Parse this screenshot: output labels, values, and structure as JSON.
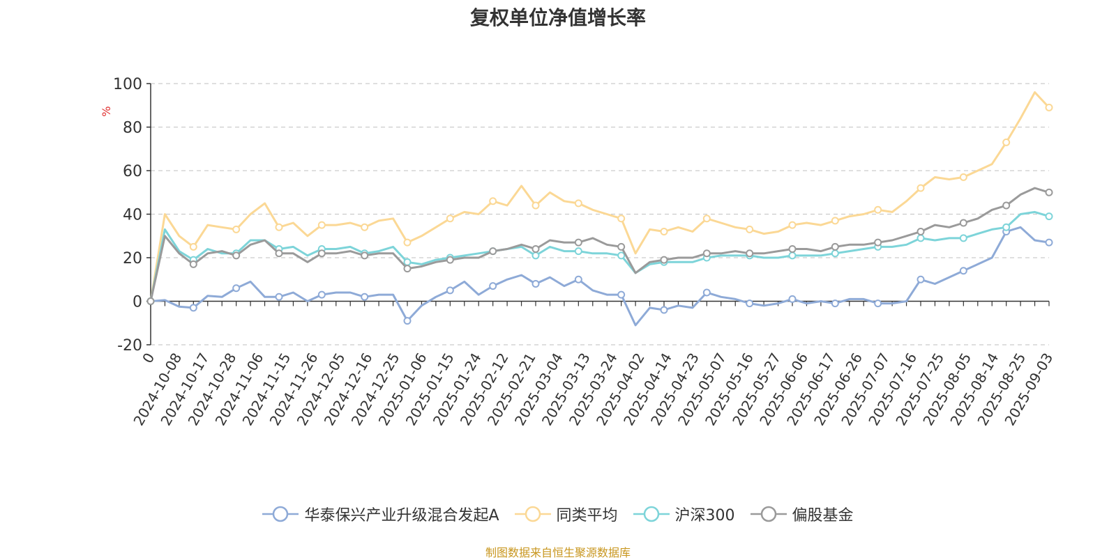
{
  "title": "复权单位净值增长率",
  "source": "制图数据来自恒生聚源数据库",
  "colors": {
    "fund": "#8eaad7",
    "peer": "#fbd895",
    "hs300": "#7dd4d9",
    "stock_fund": "#9a9a9a"
  },
  "chart_data": {
    "type": "line",
    "title": "复权单位净值增长率",
    "ylabel": "%",
    "xlabel": "",
    "ylim": [
      -20,
      100
    ],
    "yticks": [
      -20,
      0,
      20,
      40,
      60,
      80,
      100
    ],
    "grid": true,
    "legend_position": "bottom",
    "x_tick_labels": [
      "0",
      "2024-10-08",
      "2024-10-17",
      "2024-10-28",
      "2024-11-06",
      "2024-11-15",
      "2024-11-26",
      "2024-12-05",
      "2024-12-16",
      "2024-12-25",
      "2025-01-06",
      "2025-01-15",
      "2025-01-24",
      "2025-02-12",
      "2025-02-21",
      "2025-03-04",
      "2025-03-13",
      "2025-03-24",
      "2025-04-02",
      "2025-04-14",
      "2025-04-23",
      "2025-05-07",
      "2025-05-16",
      "2025-05-27",
      "2025-06-06",
      "2025-06-17",
      "2025-06-26",
      "2025-07-07",
      "2025-07-16",
      "2025-07-25",
      "2025-08-05",
      "2025-08-14",
      "2025-08-25",
      "2025-09-03"
    ],
    "series": [
      {
        "name": "华泰保兴产业升级混合发起A",
        "values": [
          0,
          0.5,
          -2.5,
          -3,
          2.5,
          2,
          6,
          9,
          2,
          2,
          4,
          0,
          3,
          4,
          4,
          2,
          3,
          3,
          -9,
          -2,
          2,
          5,
          9,
          3,
          7,
          10,
          12,
          8,
          11,
          7,
          10,
          5,
          3,
          3,
          -11,
          -3,
          -4,
          -2,
          -3,
          4,
          2,
          1,
          -1,
          -2,
          -1,
          1,
          -1,
          0,
          -1,
          1,
          1,
          -1,
          -1,
          0,
          10,
          8,
          11,
          14,
          17,
          20,
          32,
          34,
          28,
          27
        ]
      },
      {
        "name": "同类平均",
        "values": [
          0,
          40,
          30,
          25,
          35,
          34,
          33,
          40,
          45,
          34,
          36,
          30,
          35,
          35,
          36,
          34,
          37,
          38,
          27,
          30,
          34,
          38,
          41,
          40,
          46,
          44,
          53,
          44,
          50,
          46,
          45,
          42,
          40,
          38,
          22,
          33,
          32,
          34,
          32,
          38,
          36,
          34,
          33,
          31,
          32,
          35,
          36,
          35,
          37,
          39,
          40,
          42,
          41,
          46,
          52,
          57,
          56,
          57,
          60,
          63,
          73,
          84,
          96,
          89
        ]
      },
      {
        "name": "沪深300",
        "values": [
          0,
          33,
          23,
          19,
          24,
          22,
          22,
          28,
          28,
          24,
          25,
          21,
          24,
          24,
          25,
          22,
          23,
          25,
          18,
          17,
          19,
          20,
          21,
          22,
          23,
          24,
          25,
          21,
          25,
          23,
          23,
          22,
          22,
          21,
          13,
          17,
          18,
          18,
          18,
          20,
          21,
          21,
          21,
          20,
          20,
          21,
          21,
          21,
          22,
          23,
          24,
          25,
          25,
          26,
          29,
          28,
          29,
          29,
          31,
          33,
          34,
          40,
          41,
          39
        ]
      },
      {
        "name": "偏股基金",
        "values": [
          0,
          30,
          22,
          17,
          22,
          23,
          21,
          26,
          28,
          22,
          22,
          18,
          22,
          22,
          23,
          21,
          22,
          22,
          15,
          16,
          18,
          19,
          20,
          20,
          23,
          24,
          26,
          24,
          28,
          27,
          27,
          29,
          26,
          25,
          13,
          18,
          19,
          20,
          20,
          22,
          22,
          23,
          22,
          22,
          23,
          24,
          24,
          23,
          25,
          26,
          26,
          27,
          28,
          30,
          32,
          35,
          34,
          36,
          38,
          42,
          44,
          49,
          52,
          50
        ]
      }
    ]
  }
}
